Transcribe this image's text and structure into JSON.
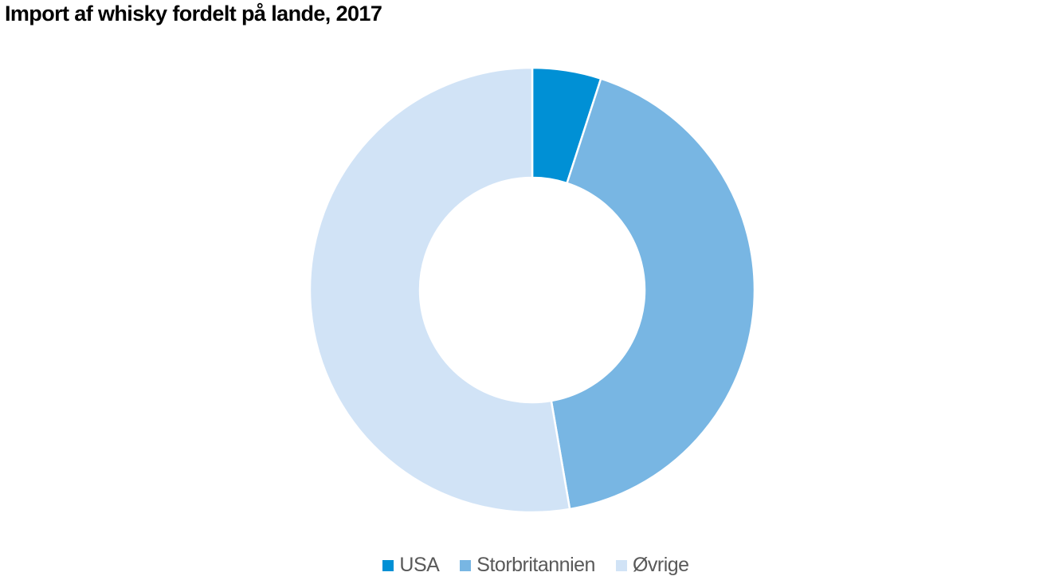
{
  "chart_data": {
    "type": "pie",
    "variant": "donut",
    "title": "Import af whisky fordelt på lande, 2017",
    "categories": [
      "USA",
      "Storbritannien",
      "Øvrige"
    ],
    "values": [
      5.0,
      42.3,
      52.7
    ],
    "unit": "percent",
    "colors": [
      "#0090d5",
      "#78b6e3",
      "#d1e3f6"
    ],
    "start_angle": "top",
    "direction": "clockwise",
    "legend_position": "bottom"
  }
}
